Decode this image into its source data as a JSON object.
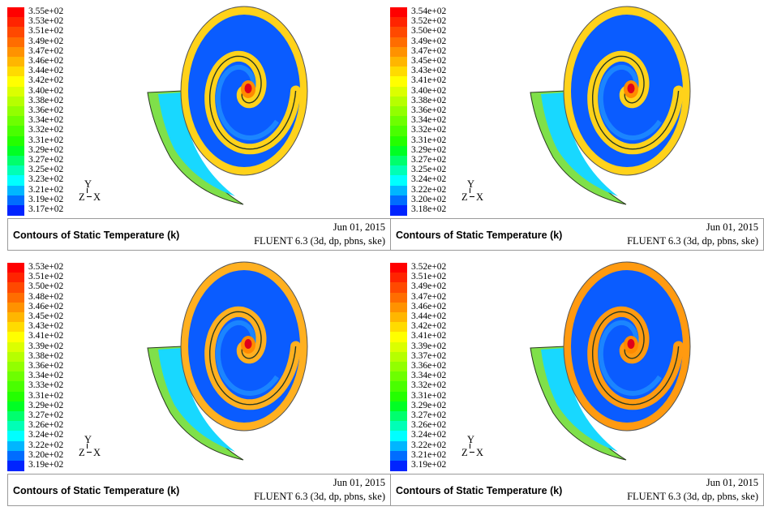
{
  "chart_data": [
    {
      "type": "contour",
      "title": "Contours of Static Temperature (k)",
      "date": "Jun 01, 2015",
      "solver": "FLUENT 6.3 (3d, dp, pbns, ske)",
      "axes": {
        "y": "Y",
        "z": "Z",
        "x": "X"
      },
      "colorbar_ticks": [
        "3.55e+02",
        "3.53e+02",
        "3.51e+02",
        "3.49e+02",
        "3.47e+02",
        "3.46e+02",
        "3.44e+02",
        "3.42e+02",
        "3.40e+02",
        "3.38e+02",
        "3.36e+02",
        "3.34e+02",
        "3.32e+02",
        "3.31e+02",
        "3.29e+02",
        "3.27e+02",
        "3.25e+02",
        "3.23e+02",
        "3.21e+02",
        "3.19e+02",
        "3.17e+02"
      ],
      "range": [
        317,
        355
      ]
    },
    {
      "type": "contour",
      "title": "Contours of Static Temperature (k)",
      "date": "Jun 01, 2015",
      "solver": "FLUENT 6.3 (3d, dp, pbns, ske)",
      "axes": {
        "y": "Y",
        "z": "Z",
        "x": "X"
      },
      "colorbar_ticks": [
        "3.54e+02",
        "3.52e+02",
        "3.50e+02",
        "3.49e+02",
        "3.47e+02",
        "3.45e+02",
        "3.43e+02",
        "3.41e+02",
        "3.40e+02",
        "3.38e+02",
        "3.36e+02",
        "3.34e+02",
        "3.32e+02",
        "3.31e+02",
        "3.29e+02",
        "3.27e+02",
        "3.25e+02",
        "3.24e+02",
        "3.22e+02",
        "3.20e+02",
        "3.18e+02"
      ],
      "range": [
        318,
        354
      ]
    },
    {
      "type": "contour",
      "title": "Contours of Static Temperature (k)",
      "date": "Jun 01, 2015",
      "solver": "FLUENT 6.3 (3d, dp, pbns, ske)",
      "axes": {
        "y": "Y",
        "z": "Z",
        "x": "X"
      },
      "colorbar_ticks": [
        "3.53e+02",
        "3.51e+02",
        "3.50e+02",
        "3.48e+02",
        "3.46e+02",
        "3.45e+02",
        "3.43e+02",
        "3.41e+02",
        "3.39e+02",
        "3.38e+02",
        "3.36e+02",
        "3.34e+02",
        "3.33e+02",
        "3.31e+02",
        "3.29e+02",
        "3.27e+02",
        "3.26e+02",
        "3.24e+02",
        "3.22e+02",
        "3.20e+02",
        "3.19e+02"
      ],
      "range": [
        319,
        353
      ]
    },
    {
      "type": "contour",
      "title": "Contours of Static Temperature (k)",
      "date": "Jun 01, 2015",
      "solver": "FLUENT 6.3 (3d, dp, pbns, ske)",
      "axes": {
        "y": "Y",
        "z": "Z",
        "x": "X"
      },
      "colorbar_ticks": [
        "3.52e+02",
        "3.51e+02",
        "3.49e+02",
        "3.47e+02",
        "3.46e+02",
        "3.44e+02",
        "3.42e+02",
        "3.41e+02",
        "3.39e+02",
        "3.37e+02",
        "3.36e+02",
        "3.34e+02",
        "3.32e+02",
        "3.31e+02",
        "3.29e+02",
        "3.27e+02",
        "3.26e+02",
        "3.24e+02",
        "3.22e+02",
        "3.21e+02",
        "3.19e+02"
      ],
      "range": [
        319,
        352
      ]
    }
  ],
  "colormap": [
    "#ff0000",
    "#ff2400",
    "#ff4900",
    "#ff6d00",
    "#ff9200",
    "#ffb600",
    "#ffdb00",
    "#ffff00",
    "#dbff00",
    "#b6ff00",
    "#92ff00",
    "#6dff00",
    "#49ff00",
    "#24ff00",
    "#00ff24",
    "#00ff6d",
    "#00ffb6",
    "#00ffff",
    "#00b6ff",
    "#006dff",
    "#0024ff"
  ]
}
